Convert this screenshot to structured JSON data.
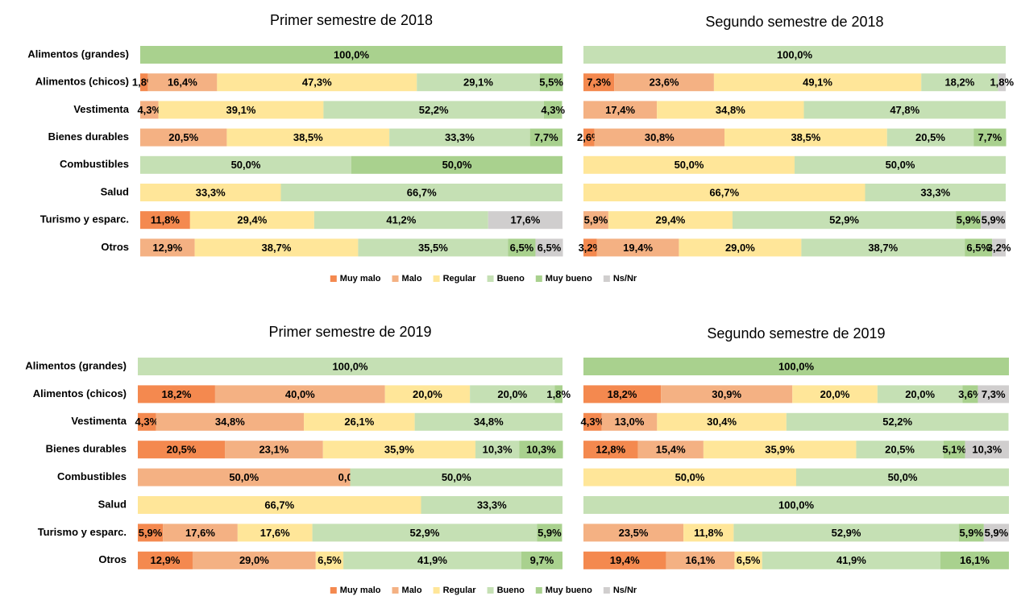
{
  "chart_data": [
    {
      "type": "bar",
      "orientation": "horizontal",
      "stacked": true,
      "title": "Primer semestre de 2018",
      "categories": [
        "Alimentos (grandes)",
        "Alimentos (chicos)",
        "Vestimenta",
        "Bienes durables",
        "Combustibles",
        "Salud",
        "Turismo y esparc.",
        "Otros"
      ],
      "xlim": [
        0,
        100
      ],
      "series": [
        {
          "name": "Muy malo",
          "color": "#f4894f",
          "values": [
            null,
            1.8,
            null,
            null,
            null,
            null,
            11.8,
            null
          ],
          "value_labels": [
            null,
            "1,8%",
            null,
            null,
            null,
            null,
            "11,8%",
            null
          ]
        },
        {
          "name": "Malo",
          "color": "#f4b183",
          "values": [
            null,
            16.4,
            4.3,
            20.5,
            null,
            null,
            null,
            12.9
          ],
          "value_labels": [
            null,
            "16,4%",
            "4,3%",
            "20,5%",
            null,
            null,
            null,
            "12,9%"
          ]
        },
        {
          "name": "Regular",
          "color": "#ffe699",
          "values": [
            null,
            47.3,
            39.1,
            38.5,
            null,
            33.3,
            29.4,
            38.7
          ],
          "value_labels": [
            null,
            "47,3%",
            "39,1%",
            "38,5%",
            null,
            "33,3%",
            "29,4%",
            "38,7%"
          ]
        },
        {
          "name": "Bueno",
          "color": "#c5e0b4",
          "values": [
            null,
            29.1,
            52.2,
            33.3,
            50,
            66.7,
            41.2,
            35.5
          ],
          "value_labels": [
            null,
            "29,1%",
            "52,2%",
            "33,3%",
            "50,0%",
            "66,7%",
            "41,2%",
            "35,5%"
          ]
        },
        {
          "name": "Muy bueno",
          "color": "#a9d18e",
          "values": [
            100,
            5.5,
            4.3,
            7.7,
            50,
            null,
            null,
            6.5
          ],
          "value_labels": [
            "100,0%",
            "5,5%",
            "4,3%",
            "7,7%",
            "50,0%",
            null,
            null,
            "6,5%"
          ]
        },
        {
          "name": "Ns/Nr",
          "color": "#d0cece",
          "values": [
            null,
            null,
            null,
            null,
            null,
            null,
            17.6,
            6.5
          ],
          "value_labels": [
            null,
            null,
            null,
            null,
            null,
            null,
            "17,6%",
            "6,5%"
          ]
        }
      ]
    },
    {
      "type": "bar",
      "orientation": "horizontal",
      "stacked": true,
      "title": "Segundo semestre de 2018",
      "xlim": [
        0,
        100
      ],
      "series": [
        {
          "color": "#f4894f",
          "values": [
            null,
            7.3,
            null,
            2.6,
            null,
            null,
            null,
            3.2
          ],
          "value_labels": [
            null,
            "7,3%",
            null,
            "2,6%",
            null,
            null,
            null,
            "3,2%"
          ]
        },
        {
          "color": "#f4b183",
          "values": [
            null,
            23.6,
            17.4,
            30.8,
            null,
            null,
            5.9,
            19.4
          ],
          "value_labels": [
            null,
            "23,6%",
            "17,4%",
            "30,8%",
            null,
            null,
            "5,9%",
            "19,4%"
          ]
        },
        {
          "color": "#ffe699",
          "values": [
            null,
            49.1,
            34.8,
            38.5,
            50,
            66.7,
            29.4,
            29.0
          ],
          "value_labels": [
            null,
            "49,1%",
            "34,8%",
            "38,5%",
            "50,0%",
            "66,7%",
            "29,4%",
            "29,0%"
          ]
        },
        {
          "color": "#c5e0b4",
          "values": [
            100,
            18.2,
            47.8,
            20.5,
            50,
            33.3,
            52.9,
            38.7
          ],
          "value_labels": [
            "100,0%",
            "18,2%",
            "47,8%",
            "20,5%",
            "50,0%",
            "33,3%",
            "52,9%",
            "38,7%"
          ]
        },
        {
          "color": "#a9d18e",
          "values": [
            null,
            null,
            null,
            7.7,
            null,
            null,
            5.9,
            6.5
          ],
          "value_labels": [
            null,
            null,
            null,
            "7,7%",
            null,
            null,
            "5,9%",
            "6,5%"
          ]
        },
        {
          "color": "#d0cece",
          "values": [
            null,
            1.8,
            null,
            null,
            null,
            null,
            5.9,
            3.2
          ],
          "value_labels": [
            null,
            "1,8%",
            null,
            null,
            null,
            null,
            "5,9%",
            "3,2%"
          ]
        }
      ]
    },
    {
      "type": "bar",
      "orientation": "horizontal",
      "stacked": true,
      "title": "Primer semestre de 2019",
      "categories": [
        "Alimentos (grandes)",
        "Alimentos (chicos)",
        "Vestimenta",
        "Bienes durables",
        "Combustibles",
        "Salud",
        "Turismo y esparc.",
        "Otros"
      ],
      "xlim": [
        0,
        100
      ],
      "series": [
        {
          "name": "Muy malo",
          "color": "#f4894f",
          "values": [
            null,
            18.2,
            4.3,
            20.5,
            null,
            null,
            5.9,
            12.9
          ],
          "value_labels": [
            null,
            "18,2%",
            "4,3%",
            "20,5%",
            null,
            null,
            "5,9%",
            "12,9%"
          ]
        },
        {
          "name": "Malo",
          "color": "#f4b183",
          "values": [
            null,
            40.0,
            34.8,
            23.1,
            50,
            null,
            17.6,
            29.0
          ],
          "value_labels": [
            null,
            "40,0%",
            "34,8%",
            "23,1%",
            "50,0%",
            null,
            "17,6%",
            "29,0%"
          ]
        },
        {
          "name": "Regular",
          "color": "#ffe699",
          "values": [
            null,
            20.0,
            26.1,
            35.9,
            0.0,
            66.7,
            17.6,
            6.5
          ],
          "value_labels": [
            null,
            "20,0%",
            "26,1%",
            "35,9%",
            "0,0%",
            "66,7%",
            "17,6%",
            "6,5%"
          ]
        },
        {
          "name": "Bueno",
          "color": "#c5e0b4",
          "values": [
            100,
            20.0,
            34.8,
            10.3,
            50,
            33.3,
            52.9,
            41.9
          ],
          "value_labels": [
            "100,0%",
            "20,0%",
            "34,8%",
            "10,3%",
            "50,0%",
            "33,3%",
            "52,9%",
            "41,9%"
          ]
        },
        {
          "name": "Muy bueno",
          "color": "#a9d18e",
          "values": [
            null,
            1.8,
            null,
            10.3,
            null,
            null,
            5.9,
            9.7
          ],
          "value_labels": [
            null,
            "1,8%",
            null,
            "10,3%",
            null,
            null,
            "5,9%",
            "9,7%"
          ]
        },
        {
          "name": "Ns/Nr",
          "color": "#d0cece",
          "values": [
            null,
            null,
            null,
            null,
            null,
            null,
            null,
            null
          ],
          "value_labels": [
            null,
            null,
            null,
            null,
            null,
            null,
            null,
            null
          ]
        }
      ]
    },
    {
      "type": "bar",
      "orientation": "horizontal",
      "stacked": true,
      "title": "Segundo semestre de 2019",
      "xlim": [
        0,
        100
      ],
      "series": [
        {
          "color": "#f4894f",
          "values": [
            null,
            18.2,
            4.3,
            12.8,
            null,
            null,
            null,
            19.4
          ],
          "value_labels": [
            null,
            "18,2%",
            "4,3%",
            "12,8%",
            null,
            null,
            null,
            "19,4%"
          ]
        },
        {
          "color": "#f4b183",
          "values": [
            null,
            30.9,
            13.0,
            15.4,
            null,
            null,
            23.5,
            16.1
          ],
          "value_labels": [
            null,
            "30,9%",
            "13,0%",
            "15,4%",
            null,
            null,
            "23,5%",
            "16,1%"
          ]
        },
        {
          "color": "#ffe699",
          "values": [
            null,
            20.0,
            30.4,
            35.9,
            50,
            null,
            11.8,
            6.5
          ],
          "value_labels": [
            null,
            "20,0%",
            "30,4%",
            "35,9%",
            "50,0%",
            null,
            "11,8%",
            "6,5%"
          ]
        },
        {
          "color": "#c5e0b4",
          "values": [
            null,
            20.0,
            52.2,
            20.5,
            50,
            100,
            52.9,
            41.9
          ],
          "value_labels": [
            null,
            "20,0%",
            "52,2%",
            "20,5%",
            "50,0%",
            "100,0%",
            "52,9%",
            "41,9%"
          ]
        },
        {
          "color": "#a9d18e",
          "values": [
            100,
            3.6,
            null,
            5.1,
            null,
            null,
            5.9,
            16.1
          ],
          "value_labels": [
            "100,0%",
            "3,6%",
            null,
            "5,1%",
            null,
            null,
            "5,9%",
            "16,1%"
          ]
        },
        {
          "color": "#d0cece",
          "values": [
            null,
            7.3,
            null,
            10.3,
            null,
            null,
            5.9,
            null
          ],
          "value_labels": [
            null,
            "7,3%",
            null,
            "10,3%",
            null,
            null,
            "5,9%",
            null
          ]
        }
      ]
    }
  ]
}
